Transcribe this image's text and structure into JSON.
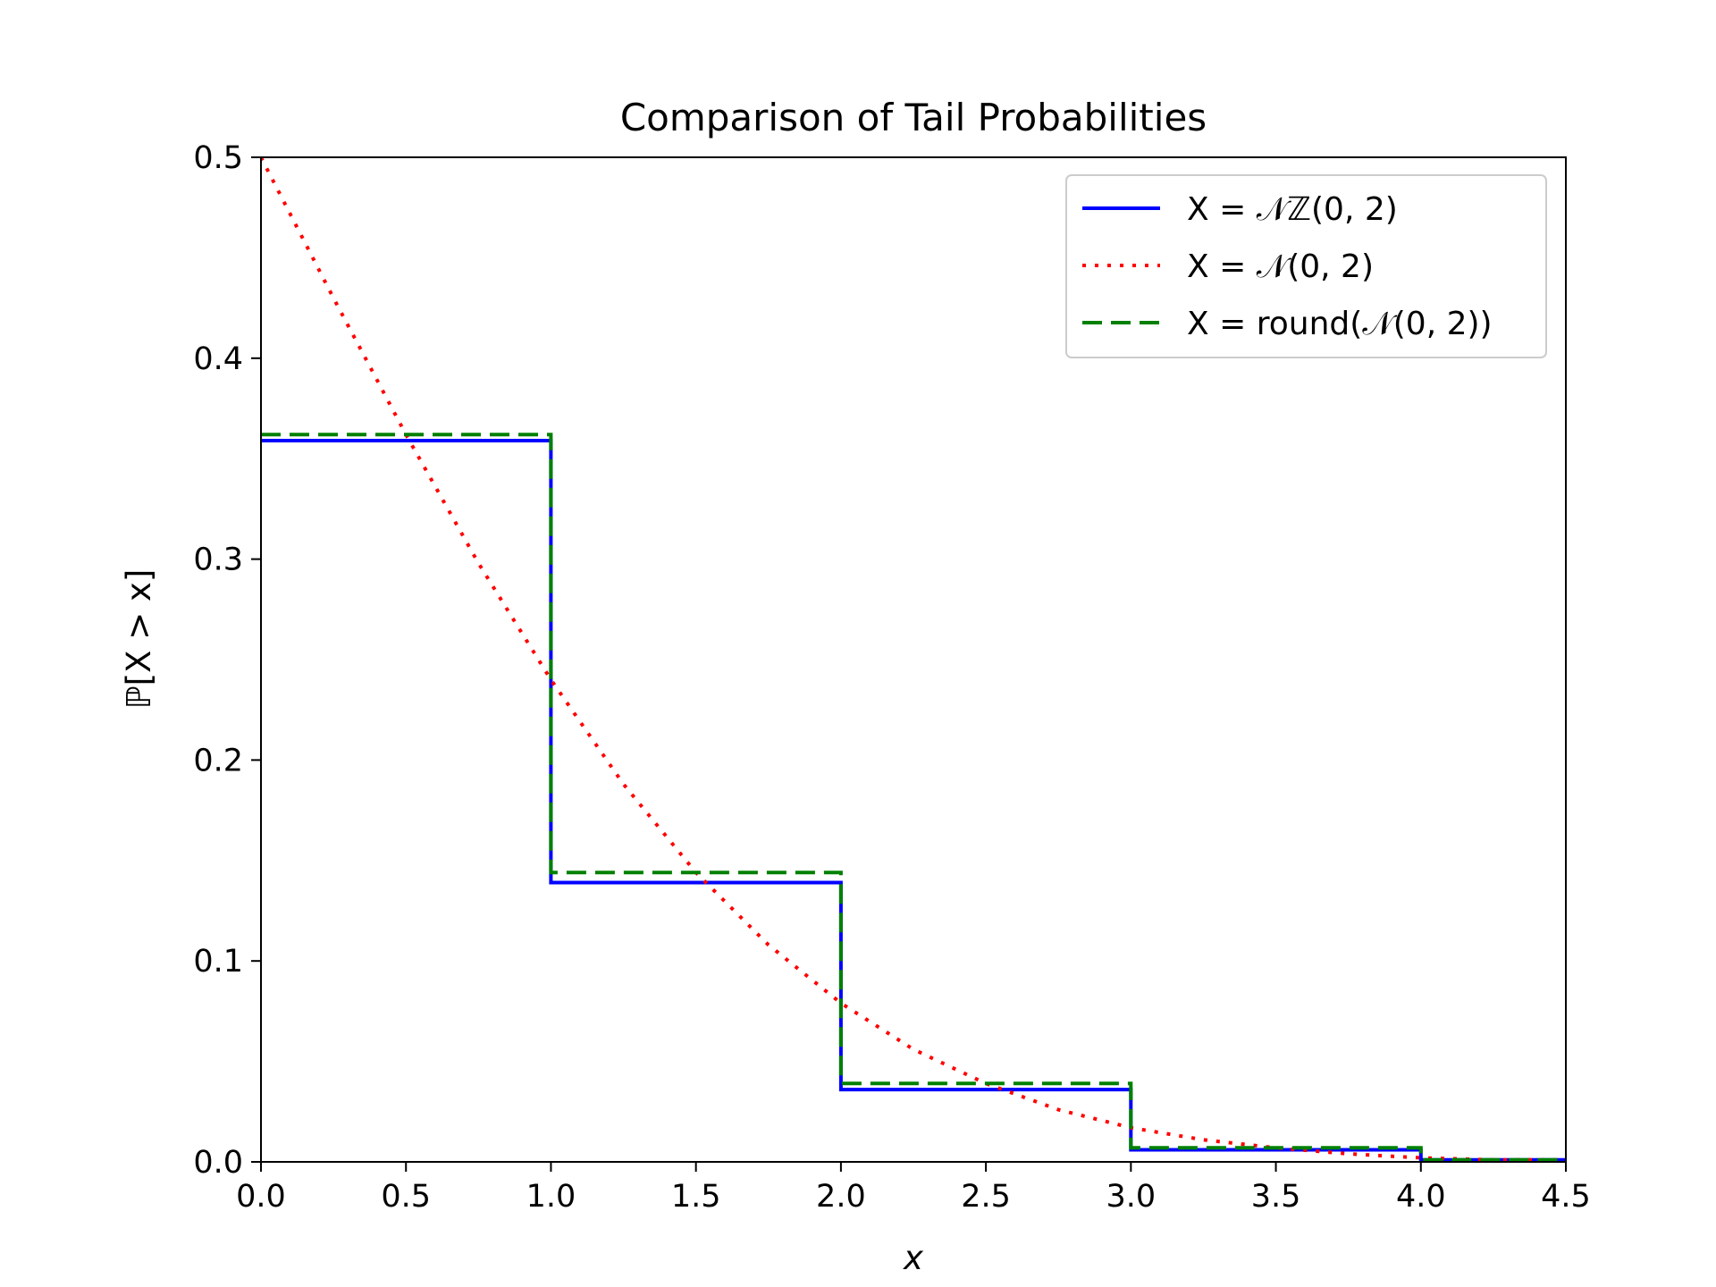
{
  "chart_data": {
    "type": "line",
    "title": "Comparison of Tail Probabilities",
    "xlabel": "x",
    "ylabel": "ℙ[X > x]",
    "xlim": [
      0.0,
      4.5
    ],
    "ylim": [
      0.0,
      0.5
    ],
    "xticks": [
      "0.0",
      "0.5",
      "1.0",
      "1.5",
      "2.0",
      "2.5",
      "3.0",
      "3.5",
      "4.0",
      "4.5"
    ],
    "yticks": [
      "0.0",
      "0.1",
      "0.2",
      "0.3",
      "0.4",
      "0.5"
    ],
    "grid": false,
    "legend": "top-right",
    "series": [
      {
        "name": "X = 𝒩ℤ(0, 2)",
        "style": "solid",
        "color": "#0000ff",
        "step": true,
        "x": [
          0,
          1,
          2,
          3,
          4,
          4.5
        ],
        "y": [
          0.359,
          0.139,
          0.036,
          0.006,
          0.001,
          0.001
        ]
      },
      {
        "name": "X = 𝒩(0, 2)",
        "style": "dotted",
        "color": "#ff0000",
        "step": false,
        "x": [
          0.0,
          0.25,
          0.5,
          0.75,
          1.0,
          1.25,
          1.5,
          1.75,
          2.0,
          2.25,
          2.5,
          2.75,
          3.0,
          3.25,
          3.5,
          3.75,
          4.0,
          4.25,
          4.5
        ],
        "y": [
          0.5,
          0.43,
          0.362,
          0.298,
          0.24,
          0.188,
          0.144,
          0.108,
          0.079,
          0.056,
          0.039,
          0.026,
          0.017,
          0.011,
          0.007,
          0.004,
          0.002,
          0.001,
          0.001
        ]
      },
      {
        "name": "X = round(𝒩(0, 2))",
        "style": "dashed",
        "color": "#008000",
        "step": true,
        "x": [
          0,
          1,
          2,
          3,
          4,
          4.5
        ],
        "y": [
          0.362,
          0.144,
          0.039,
          0.007,
          0.001,
          0.001
        ]
      }
    ]
  }
}
